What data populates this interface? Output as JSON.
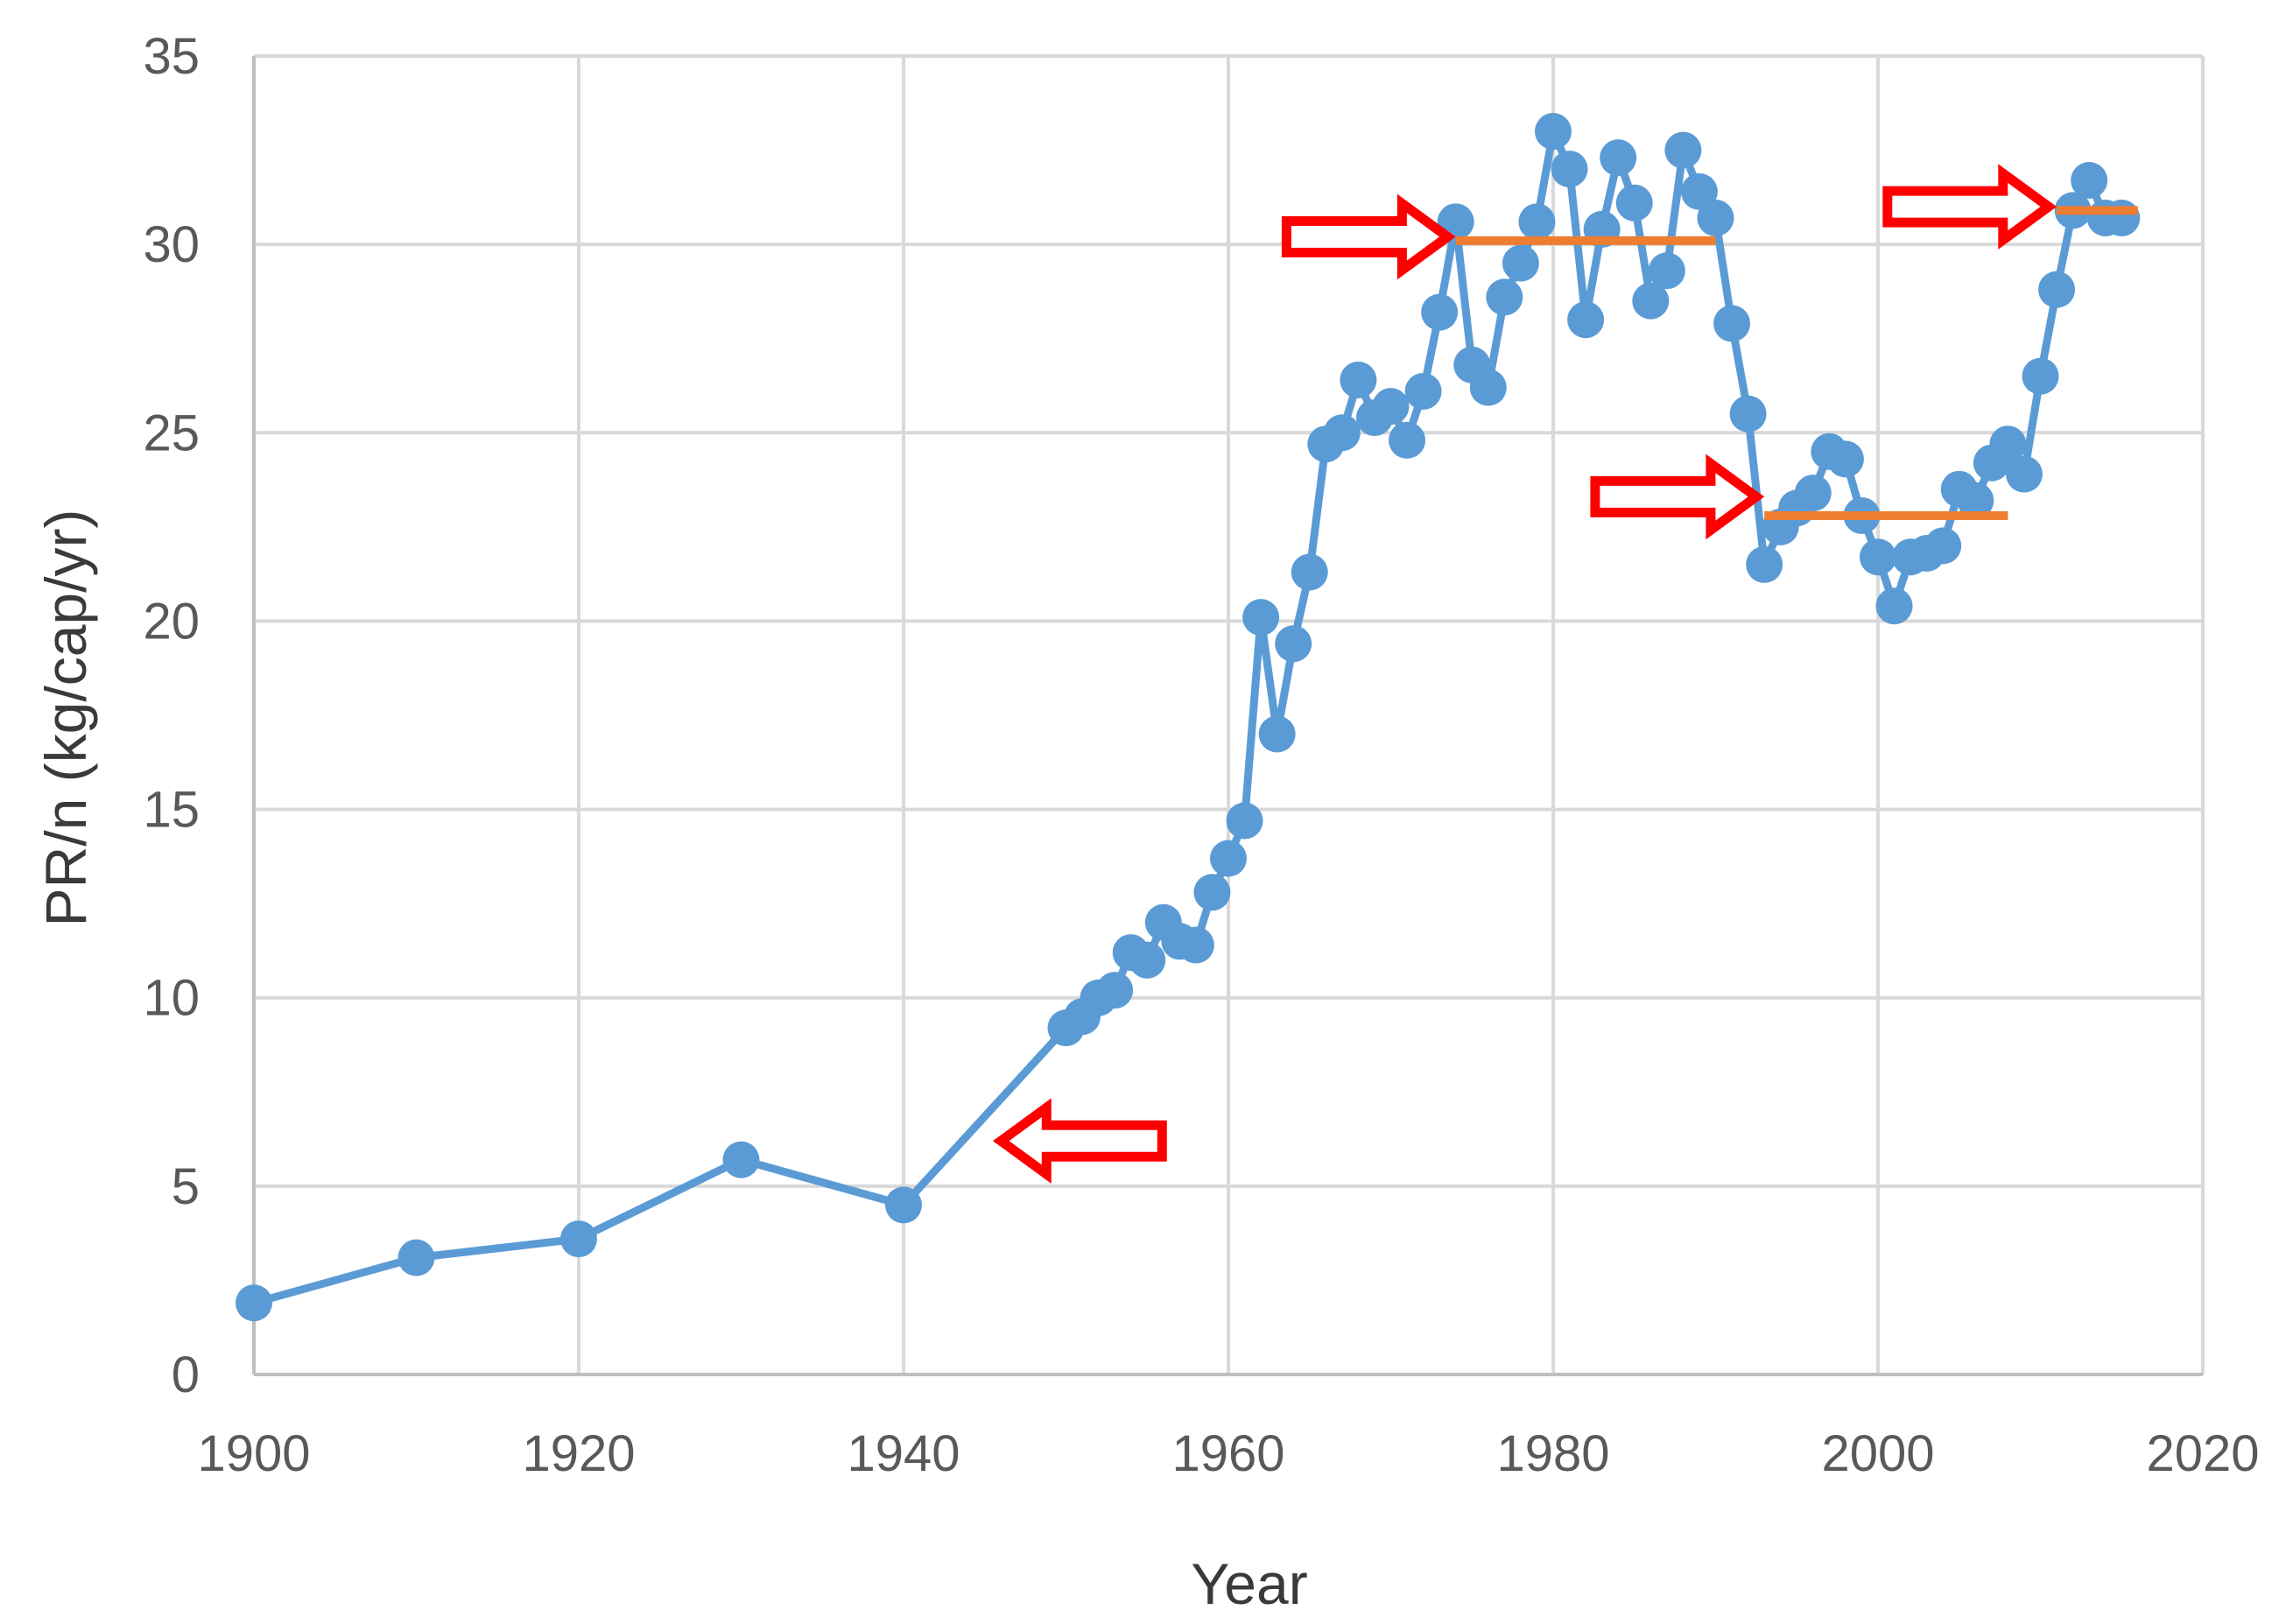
{
  "chart_data": {
    "type": "line",
    "title": "",
    "xlabel": "Year",
    "ylabel": "PR/n (kg/cap/yr)",
    "xlim": [
      1900,
      2020
    ],
    "ylim": [
      0,
      35
    ],
    "x_ticks": [
      "1900",
      "1920",
      "1940",
      "1960",
      "1980",
      "2000",
      "2020"
    ],
    "y_ticks": [
      "0",
      "5",
      "10",
      "15",
      "20",
      "25",
      "30",
      "35"
    ],
    "grid": true,
    "legend": "none",
    "series": [
      {
        "color": "#5b9bd5",
        "marker": "circle",
        "x": [
          1900,
          1910,
          1920,
          1930,
          1940,
          1950,
          1951,
          1952,
          1953,
          1954,
          1955,
          1956,
          1957,
          1958,
          1959,
          1960,
          1961,
          1962,
          1963,
          1964,
          1965,
          1966,
          1967,
          1968,
          1969,
          1970,
          1971,
          1972,
          1973,
          1974,
          1975,
          1976,
          1977,
          1978,
          1979,
          1980,
          1981,
          1982,
          1983,
          1984,
          1985,
          1986,
          1987,
          1988,
          1989,
          1990,
          1991,
          1992,
          1993,
          1994,
          1995,
          1996,
          1997,
          1998,
          1999,
          2000,
          2001,
          2002,
          2003,
          2004,
          2005,
          2006,
          2007,
          2008,
          2009,
          2010,
          2011,
          2012,
          2013,
          2014,
          2015
        ],
        "y": [
          1.9,
          3.1,
          3.6,
          5.7,
          4.5,
          9.2,
          9.5,
          10.0,
          10.2,
          11.2,
          11.0,
          12.0,
          11.5,
          11.4,
          12.8,
          13.7,
          14.7,
          20.1,
          17.0,
          19.4,
          21.3,
          24.7,
          25.0,
          26.4,
          25.4,
          25.7,
          24.8,
          26.1,
          28.2,
          30.6,
          26.8,
          26.2,
          28.6,
          29.5,
          30.6,
          33.0,
          32.0,
          28.0,
          30.4,
          32.3,
          31.1,
          28.5,
          29.3,
          32.5,
          31.4,
          30.7,
          27.9,
          25.5,
          21.5,
          22.5,
          23.0,
          23.4,
          24.5,
          24.3,
          22.8,
          21.7,
          20.4,
          21.7,
          21.8,
          22.0,
          23.5,
          23.2,
          24.2,
          24.7,
          23.9,
          26.5,
          28.8,
          30.9,
          31.7,
          30.7,
          30.7
        ]
      }
    ],
    "annotations": {
      "mean_lines": [
        {
          "x1": 1974,
          "x2": 1990,
          "y": 30.1,
          "color": "#ed7d31"
        },
        {
          "x1": 1993,
          "x2": 2008,
          "y": 22.8,
          "color": "#ed7d31"
        },
        {
          "x1": 2011,
          "x2": 2016,
          "y": 30.9,
          "color": "#ed7d31"
        }
      ],
      "arrows": [
        {
          "name": "arrow-1950",
          "direction": "left",
          "tip_x": 1946,
          "tip_y": 6.2,
          "color": "#ff0000"
        },
        {
          "name": "arrow-1974",
          "direction": "right",
          "tip_x": 1973.5,
          "tip_y": 30.2,
          "color": "#ff0000"
        },
        {
          "name": "arrow-1993",
          "direction": "right",
          "tip_x": 1992.5,
          "tip_y": 23.3,
          "color": "#ff0000"
        },
        {
          "name": "arrow-2011",
          "direction": "right",
          "tip_x": 2010.5,
          "tip_y": 31.0,
          "color": "#ff0000"
        }
      ]
    }
  }
}
